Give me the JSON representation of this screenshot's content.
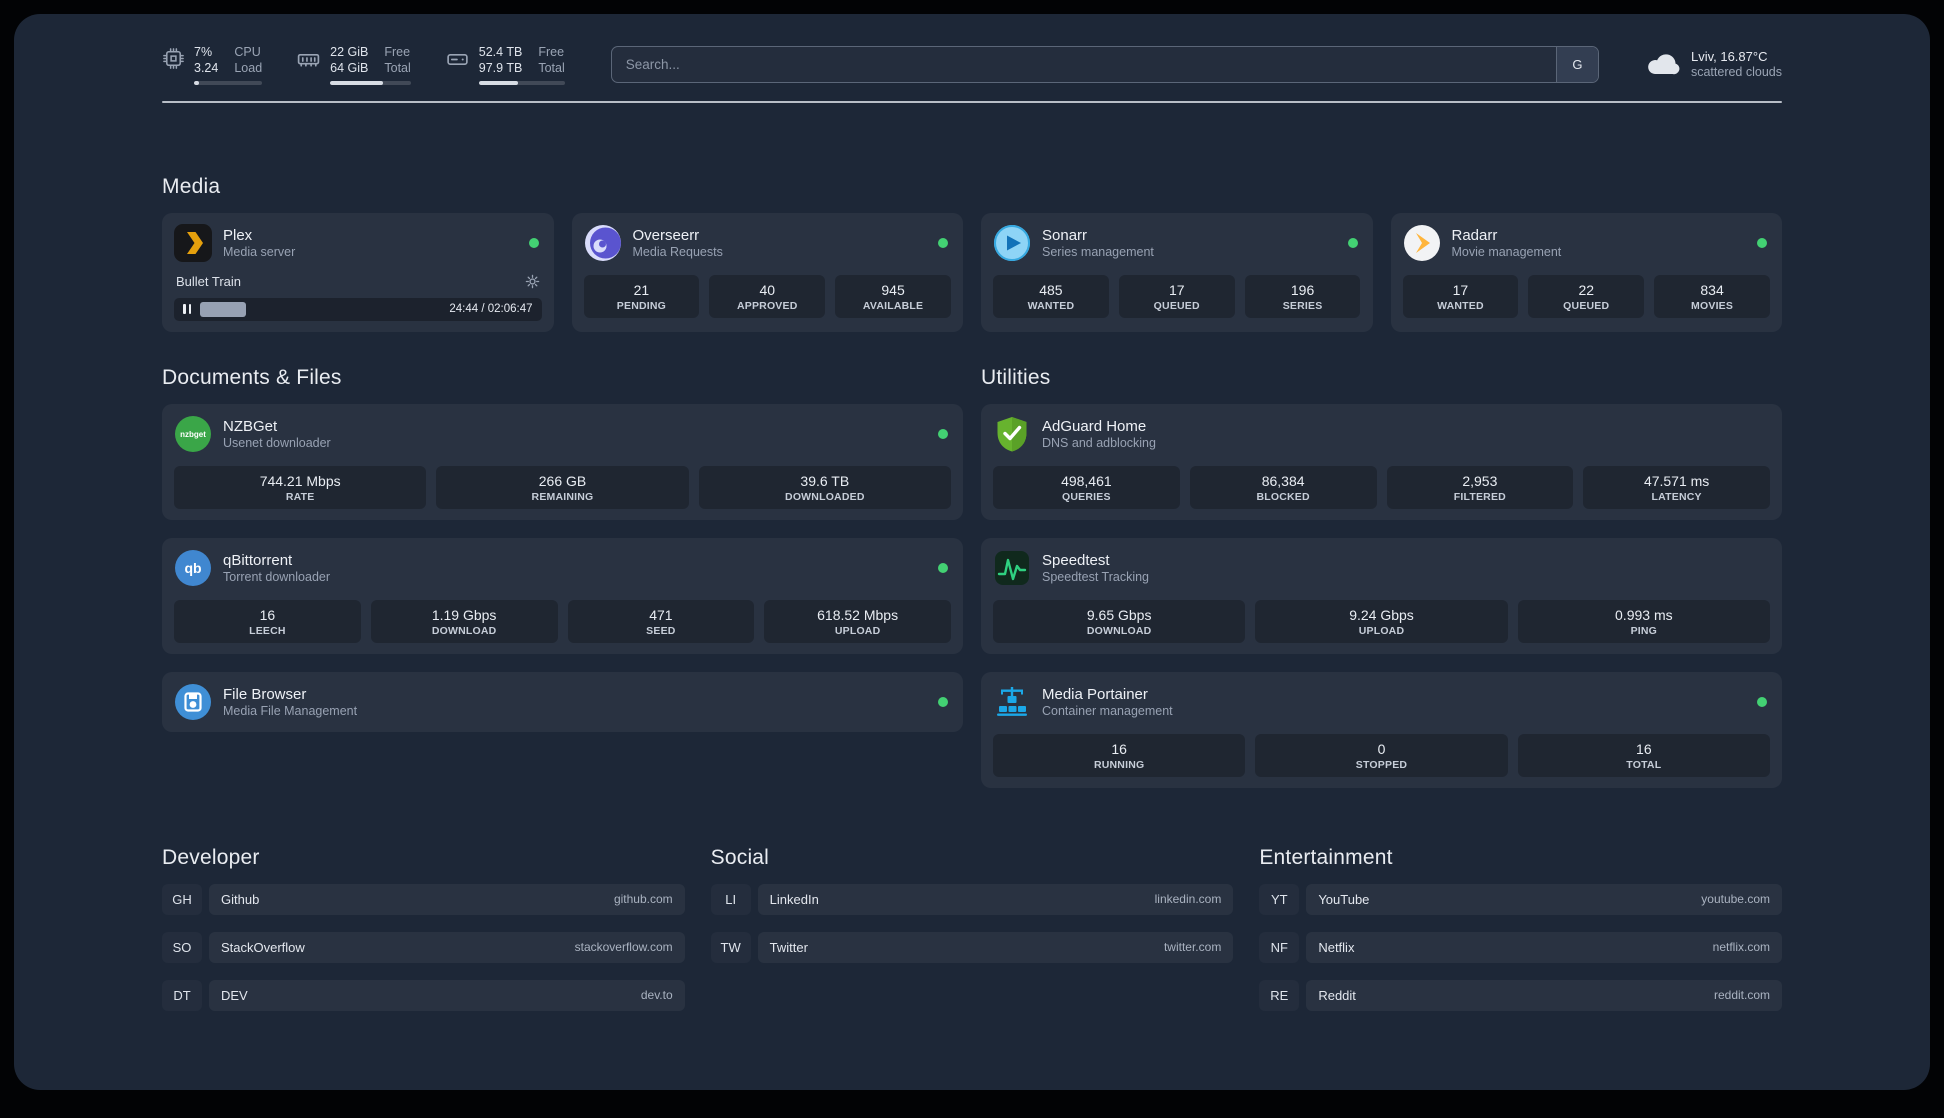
{
  "topbar": {
    "cpu": {
      "percent": "7%",
      "load": "3.24",
      "label_top": "CPU",
      "label_bottom": "Load",
      "bar_percent": 7
    },
    "memory": {
      "free": "22 GiB",
      "total": "64 GiB",
      "label_top": "Free",
      "label_bottom": "Total",
      "bar_percent": 66
    },
    "disk": {
      "free": "52.4 TB",
      "total": "97.9 TB",
      "label_top": "Free",
      "label_bottom": "Total",
      "bar_percent": 46
    },
    "search": {
      "placeholder": "Search...",
      "provider": "G"
    },
    "weather": {
      "location": "Lviv, 16.87°C",
      "condition": "scattered clouds"
    }
  },
  "colors": {
    "status_online": "#43d173",
    "plex_accent": "#e5a00d",
    "adguard_green": "#67b32e",
    "speedtest_green": "#2fd181"
  },
  "icons": {
    "cpu": "chip-outline",
    "memory": "ram-stick-outline",
    "disk": "hard-drive-outline",
    "weather": "cloud",
    "settings": "gear",
    "playback": "pause"
  },
  "sections": {
    "media": {
      "title": "Media",
      "plex": {
        "name": "Plex",
        "subtitle": "Media server",
        "now_playing": "Bullet Train",
        "time": "24:44 / 02:06:47",
        "progress_percent": 19
      },
      "overseerr": {
        "name": "Overseerr",
        "subtitle": "Media Requests",
        "stats": [
          {
            "value": "21",
            "label": "PENDING"
          },
          {
            "value": "40",
            "label": "APPROVED"
          },
          {
            "value": "945",
            "label": "AVAILABLE"
          }
        ]
      },
      "sonarr": {
        "name": "Sonarr",
        "subtitle": "Series management",
        "stats": [
          {
            "value": "485",
            "label": "WANTED"
          },
          {
            "value": "17",
            "label": "QUEUED"
          },
          {
            "value": "196",
            "label": "SERIES"
          }
        ]
      },
      "radarr": {
        "name": "Radarr",
        "subtitle": "Movie management",
        "stats": [
          {
            "value": "17",
            "label": "WANTED"
          },
          {
            "value": "22",
            "label": "QUEUED"
          },
          {
            "value": "834",
            "label": "MOVIES"
          }
        ]
      }
    },
    "documents": {
      "title": "Documents & Files",
      "nzbget": {
        "name": "NZBGet",
        "subtitle": "Usenet downloader",
        "stats": [
          {
            "value": "744.21 Mbps",
            "label": "RATE"
          },
          {
            "value": "266 GB",
            "label": "REMAINING"
          },
          {
            "value": "39.6 TB",
            "label": "DOWNLOADED"
          }
        ]
      },
      "qbittorrent": {
        "name": "qBittorrent",
        "subtitle": "Torrent downloader",
        "stats": [
          {
            "value": "16",
            "label": "LEECH"
          },
          {
            "value": "1.19 Gbps",
            "label": "DOWNLOAD"
          },
          {
            "value": "471",
            "label": "SEED"
          },
          {
            "value": "618.52 Mbps",
            "label": "UPLOAD"
          }
        ]
      },
      "filebrowser": {
        "name": "File Browser",
        "subtitle": "Media File Management"
      }
    },
    "utilities": {
      "title": "Utilities",
      "adguard": {
        "name": "AdGuard Home",
        "subtitle": "DNS and adblocking",
        "stats": [
          {
            "value": "498,461",
            "label": "QUERIES"
          },
          {
            "value": "86,384",
            "label": "BLOCKED"
          },
          {
            "value": "2,953",
            "label": "FILTERED"
          },
          {
            "value": "47.571 ms",
            "label": "LATENCY"
          }
        ]
      },
      "speedtest": {
        "name": "Speedtest",
        "subtitle": "Speedtest Tracking",
        "stats": [
          {
            "value": "9.65 Gbps",
            "label": "DOWNLOAD"
          },
          {
            "value": "9.24 Gbps",
            "label": "UPLOAD"
          },
          {
            "value": "0.993 ms",
            "label": "PING"
          }
        ]
      },
      "portainer": {
        "name": "Media Portainer",
        "subtitle": "Container management",
        "stats": [
          {
            "value": "16",
            "label": "RUNNING"
          },
          {
            "value": "0",
            "label": "STOPPED"
          },
          {
            "value": "16",
            "label": "TOTAL"
          }
        ]
      }
    },
    "bookmarks": {
      "developer": {
        "title": "Developer",
        "items": [
          {
            "abbr": "GH",
            "name": "Github",
            "domain": "github.com"
          },
          {
            "abbr": "SO",
            "name": "StackOverflow",
            "domain": "stackoverflow.com"
          },
          {
            "abbr": "DT",
            "name": "DEV",
            "domain": "dev.to"
          }
        ]
      },
      "social": {
        "title": "Social",
        "items": [
          {
            "abbr": "LI",
            "name": "LinkedIn",
            "domain": "linkedin.com"
          },
          {
            "abbr": "TW",
            "name": "Twitter",
            "domain": "twitter.com"
          }
        ]
      },
      "entertainment": {
        "title": "Entertainment",
        "items": [
          {
            "abbr": "YT",
            "name": "YouTube",
            "domain": "youtube.com"
          },
          {
            "abbr": "NF",
            "name": "Netflix",
            "domain": "netflix.com"
          },
          {
            "abbr": "RE",
            "name": "Reddit",
            "domain": "reddit.com"
          }
        ]
      }
    }
  }
}
